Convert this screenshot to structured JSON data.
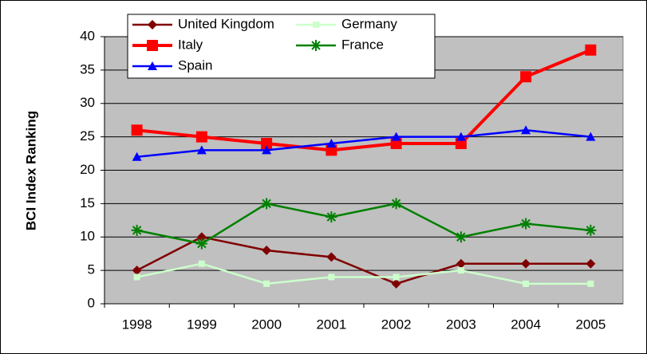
{
  "chart_data": {
    "type": "line",
    "y_label": "BCI Index Ranking",
    "categories": [
      "1998",
      "1999",
      "2000",
      "2001",
      "2002",
      "2003",
      "2004",
      "2005"
    ],
    "series": [
      {
        "name": "United Kingdom",
        "color": "#800000",
        "marker": "diamond",
        "values": [
          5,
          10,
          8,
          7,
          3,
          6,
          6,
          6
        ]
      },
      {
        "name": "Germany",
        "color": "#ccffcc",
        "marker": "square",
        "values": [
          4,
          6,
          3,
          4,
          4,
          5,
          3,
          3
        ]
      },
      {
        "name": "Italy",
        "color": "#ff0000",
        "marker": "bigsquare",
        "values": [
          26,
          25,
          24,
          23,
          24,
          24,
          34,
          38
        ]
      },
      {
        "name": "France",
        "color": "#008000",
        "marker": "star",
        "values": [
          11,
          9,
          15,
          13,
          15,
          10,
          12,
          11
        ]
      },
      {
        "name": "Spain",
        "color": "#0000ff",
        "marker": "triangle",
        "values": [
          22,
          23,
          23,
          24,
          25,
          25,
          26,
          25
        ]
      }
    ],
    "ylim": [
      0,
      40
    ],
    "yticks": [
      0,
      5,
      10,
      15,
      20,
      25,
      30,
      35,
      40
    ],
    "grid": true
  }
}
